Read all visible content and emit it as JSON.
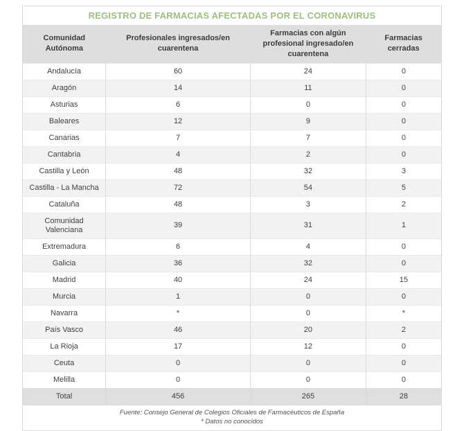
{
  "title": "REGISTRO DE FARMACIAS AFECTADAS POR EL CORONAVIRUS",
  "colors": {
    "accent_green": "#9dbe82",
    "header_bg": "#dedede",
    "stripe_bg": "#f2f2f2",
    "total_bg": "#dfdfdf",
    "border": "#d9d9d9",
    "text": "#3f3f3f"
  },
  "chart_data": {
    "type": "table",
    "title": "REGISTRO DE FARMACIAS AFECTADAS POR EL CORONAVIRUS",
    "columns": [
      "Comunidad Autónoma",
      "Profesionales ingresados/en cuarentena",
      "Farmacias con algún profesional ingresado/en cuarentena",
      "Farmacias cerradas"
    ],
    "rows": [
      [
        "Andalucía",
        "60",
        "24",
        "0"
      ],
      [
        "Aragón",
        "14",
        "11",
        "0"
      ],
      [
        "Asturias",
        "6",
        "0",
        "0"
      ],
      [
        "Baleares",
        "12",
        "9",
        "0"
      ],
      [
        "Canarias",
        "7",
        "7",
        "0"
      ],
      [
        "Cantabria",
        "4",
        "2",
        "0"
      ],
      [
        "Castilla y León",
        "48",
        "32",
        "3"
      ],
      [
        "Castilla - La Mancha",
        "72",
        "54",
        "5"
      ],
      [
        "Cataluña",
        "48",
        "3",
        "2"
      ],
      [
        "Comunidad Valenciana",
        "39",
        "31",
        "1"
      ],
      [
        "Extremadura",
        "6",
        "4",
        "0"
      ],
      [
        "Galicia",
        "36",
        "32",
        "0"
      ],
      [
        "Madrid",
        "40",
        "24",
        "15"
      ],
      [
        "Murcia",
        "1",
        "0",
        "0"
      ],
      [
        "Navarra",
        "*",
        "0",
        "*"
      ],
      [
        "País Vasco",
        "46",
        "20",
        "2"
      ],
      [
        "La Rioja",
        "17",
        "12",
        "0"
      ],
      [
        "Ceuta",
        "0",
        "0",
        "0"
      ],
      [
        "Melilla",
        "0",
        "0",
        "0"
      ]
    ],
    "total_row": [
      "Total",
      "456",
      "265",
      "28"
    ],
    "footnotes": [
      "Fuente: Consejo General de Colegios Oficiales de Farmacéuticos de España",
      "* Datos no conocidos"
    ]
  }
}
